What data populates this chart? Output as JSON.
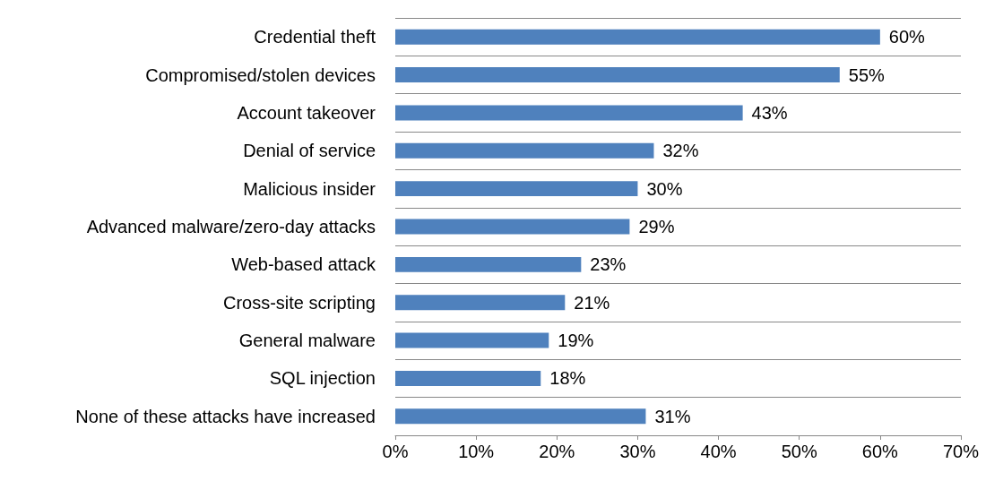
{
  "chart_data": {
    "type": "bar",
    "orientation": "horizontal",
    "categories": [
      "Credential theft",
      "Compromised/stolen devices",
      "Account takeover",
      "Denial of service",
      "Malicious insider",
      "Advanced malware/zero-day attacks",
      "Web-based attack",
      "Cross-site scripting",
      "General malware",
      "SQL injection",
      "None of these attacks have increased"
    ],
    "values": [
      60,
      55,
      43,
      32,
      30,
      29,
      23,
      21,
      19,
      18,
      31
    ],
    "value_labels": [
      "60%",
      "55%",
      "43%",
      "32%",
      "30%",
      "29%",
      "23%",
      "21%",
      "19%",
      "18%",
      "31%"
    ],
    "color": "#4f81bd",
    "xlim": [
      0,
      70
    ],
    "xticks": [
      {
        "value": 0,
        "label": "0%"
      },
      {
        "value": 10,
        "label": "10%"
      },
      {
        "value": 20,
        "label": "20%"
      },
      {
        "value": 30,
        "label": "30%"
      },
      {
        "value": 40,
        "label": "40%"
      },
      {
        "value": 50,
        "label": "50%"
      },
      {
        "value": 60,
        "label": "60%"
      },
      {
        "value": 70,
        "label": "70%"
      }
    ],
    "grid": "y"
  }
}
